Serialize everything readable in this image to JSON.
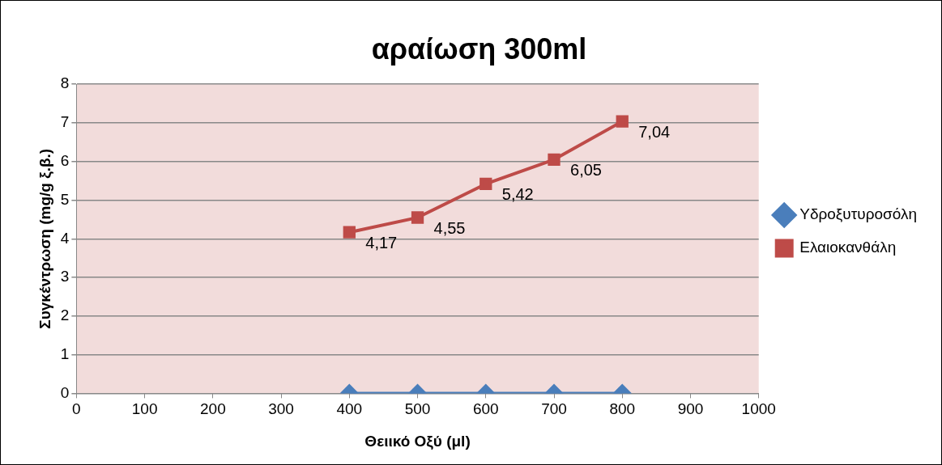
{
  "chart_data": {
    "type": "line",
    "title": "αραίωση 300ml",
    "xlabel": "Θειικό Οξύ (μl)",
    "ylabel": "Συγκέντρωση (mg/g ξ.β.)",
    "x": [
      400,
      500,
      600,
      700,
      800
    ],
    "series": [
      {
        "name": "Υδροξυτυροσόλη",
        "color": "#4a7ebb",
        "marker": "diamond",
        "values": [
          0,
          0,
          0,
          0,
          0
        ]
      },
      {
        "name": "Ελαιοκανθάλη",
        "color": "#be4b48",
        "marker": "square",
        "values": [
          4.17,
          4.55,
          5.42,
          6.05,
          7.04
        ],
        "value_labels": [
          "4,17",
          "4,55",
          "5,42",
          "6,05",
          "7,04"
        ]
      }
    ],
    "xlim": [
      0,
      1000
    ],
    "xticks": [
      0,
      100,
      200,
      300,
      400,
      500,
      600,
      700,
      800,
      900,
      1000
    ],
    "ylim": [
      0,
      8
    ],
    "yticks": [
      0,
      1,
      2,
      3,
      4,
      5,
      6,
      7,
      8
    ],
    "grid": "y",
    "legend": "right",
    "line_style": "solid"
  }
}
